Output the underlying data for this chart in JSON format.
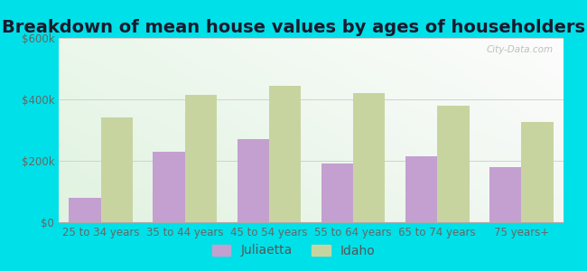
{
  "title": "Breakdown of mean house values by ages of householders",
  "categories": [
    "25 to 34 years",
    "35 to 44 years",
    "45 to 54 years",
    "55 to 64 years",
    "65 to 74 years",
    "75 years+"
  ],
  "juliaetta": [
    80000,
    230000,
    270000,
    190000,
    215000,
    180000
  ],
  "idaho": [
    340000,
    415000,
    445000,
    420000,
    380000,
    325000
  ],
  "juliaetta_color": "#c4a0d0",
  "idaho_color": "#c8d4a0",
  "background_outer": "#00e0e8",
  "ylim": [
    0,
    600000
  ],
  "yticks": [
    0,
    200000,
    400000,
    600000
  ],
  "ytick_labels": [
    "$0",
    "$200k",
    "$400k",
    "$600k"
  ],
  "legend_juliaetta": "Juliaetta",
  "legend_idaho": "Idaho",
  "title_fontsize": 14,
  "tick_fontsize": 8.5,
  "legend_fontsize": 10,
  "bar_width": 0.38,
  "watermark": "City-Data.com"
}
